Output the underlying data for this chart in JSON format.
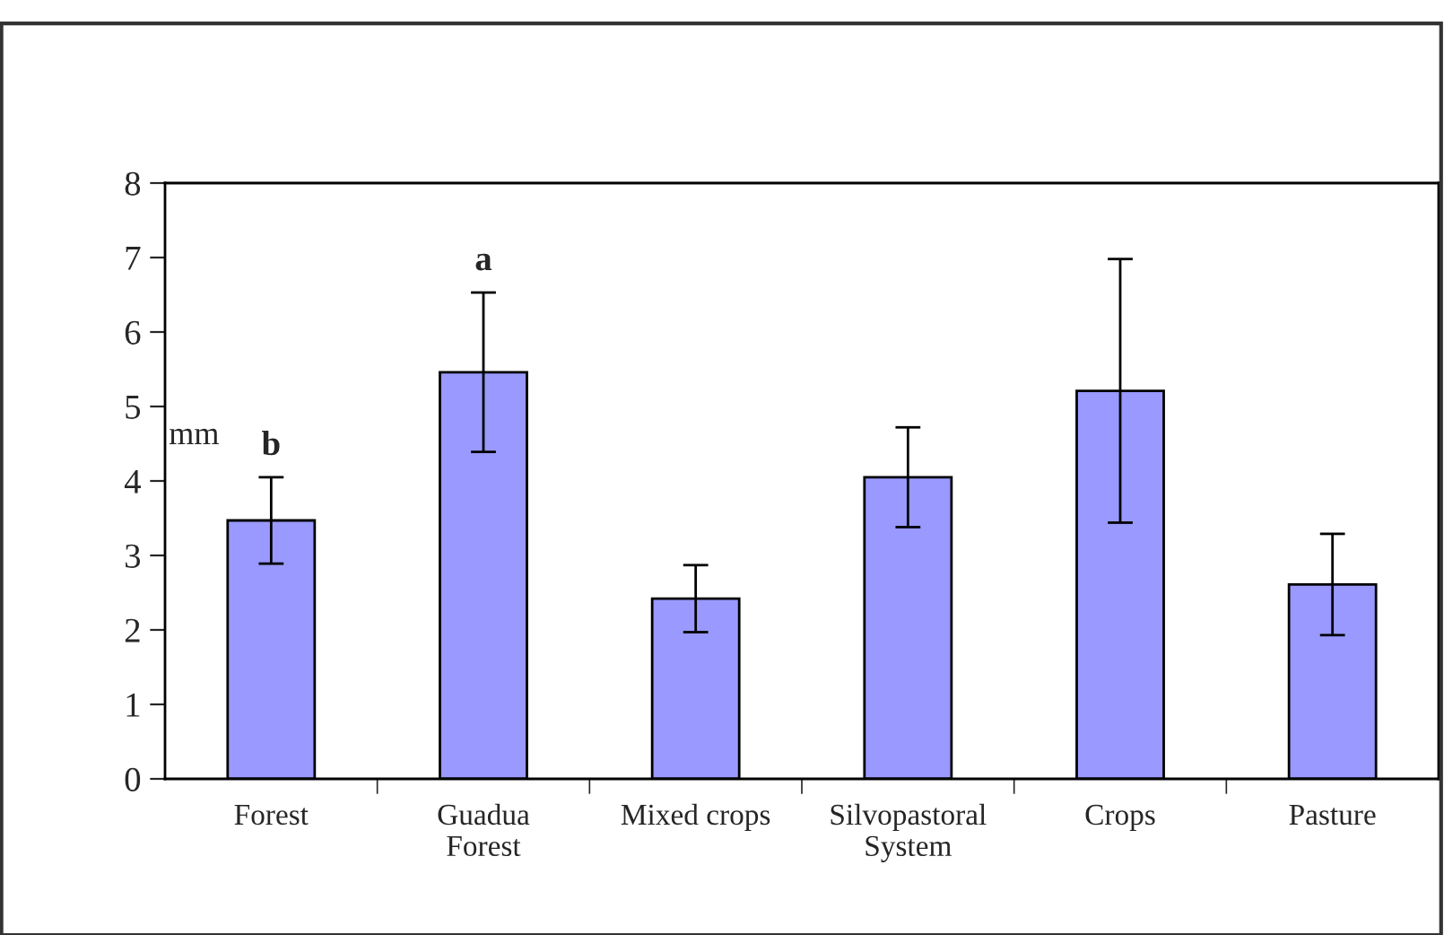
{
  "chart_data": {
    "type": "bar",
    "ylabel": "mm",
    "categories": [
      "Forest",
      "Guadua\nForest",
      "Mixed crops",
      "Silvopastoral\nSystem",
      "Crops",
      "Pasture"
    ],
    "values": [
      3.47,
      5.46,
      2.42,
      4.05,
      5.21,
      2.61
    ],
    "errors": [
      0.58,
      1.07,
      0.45,
      0.67,
      1.77,
      0.68
    ],
    "color": "#9999ff",
    "ylim": [
      0,
      8
    ],
    "yticks": [
      0,
      1,
      2,
      3,
      4,
      5,
      6,
      7,
      8
    ],
    "grid": false,
    "legend": false,
    "annotations": [
      "b",
      "a"
    ]
  }
}
